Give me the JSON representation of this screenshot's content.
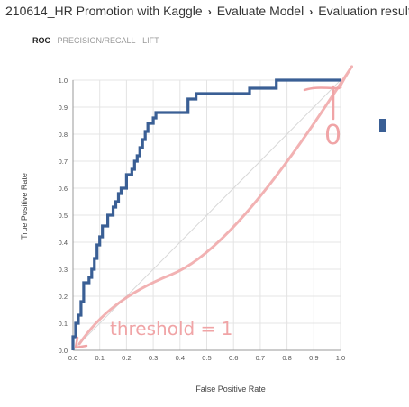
{
  "breadcrumb": {
    "experiment": "210614_HR Promotion with Kaggle",
    "module": "Evaluate Model",
    "page": "Evaluation results",
    "separator": "›"
  },
  "tabs": [
    {
      "label": "ROC",
      "active": true
    },
    {
      "label": "PRECISION/RECALL",
      "active": false
    },
    {
      "label": "LIFT",
      "active": false
    }
  ],
  "annotation": {
    "text": "threshold = 1",
    "sideText": "0",
    "color": "#f0a4a6"
  },
  "colors": {
    "roc": "#3a5f95",
    "diagonal": "#d8d8d8",
    "grid": "#e4e4e4",
    "marker": "#3a5f95"
  },
  "chart_data": {
    "type": "line",
    "xlabel": "False Positive Rate",
    "ylabel": "True Positive Rate",
    "xlim": [
      0,
      1
    ],
    "ylim": [
      0,
      1
    ],
    "xticks": [
      "0.0",
      "0.1",
      "0.2",
      "0.3",
      "0.4",
      "0.5",
      "0.6",
      "0.7",
      "0.8",
      "0.9",
      "1.0"
    ],
    "yticks": [
      "0.0",
      "0.1",
      "0.2",
      "0.3",
      "0.4",
      "0.5",
      "0.6",
      "0.7",
      "0.8",
      "0.9",
      "1.0"
    ],
    "grid": true,
    "series": [
      {
        "x": [
          0,
          0,
          0.01,
          0.01,
          0.02,
          0.02,
          0.03,
          0.03,
          0.04,
          0.04,
          0.06,
          0.06,
          0.07,
          0.07,
          0.08,
          0.08,
          0.09,
          0.09,
          0.1,
          0.1,
          0.11,
          0.11,
          0.13,
          0.13,
          0.15,
          0.15,
          0.16,
          0.16,
          0.17,
          0.17,
          0.18,
          0.18,
          0.2,
          0.2,
          0.22,
          0.22,
          0.23,
          0.23,
          0.24,
          0.24,
          0.25,
          0.25,
          0.26,
          0.26,
          0.27,
          0.27,
          0.28,
          0.28,
          0.3,
          0.3,
          0.31,
          0.31,
          0.32,
          0.32,
          0.43,
          0.43,
          0.46,
          0.46,
          0.6,
          0.6,
          0.66,
          0.66,
          0.74,
          0.74,
          0.76,
          0.76,
          1.0
        ],
        "y": [
          0,
          0.05,
          0.05,
          0.1,
          0.1,
          0.13,
          0.13,
          0.18,
          0.18,
          0.25,
          0.25,
          0.27,
          0.27,
          0.3,
          0.3,
          0.34,
          0.34,
          0.39,
          0.39,
          0.42,
          0.42,
          0.46,
          0.46,
          0.5,
          0.5,
          0.53,
          0.53,
          0.55,
          0.55,
          0.58,
          0.58,
          0.6,
          0.6,
          0.65,
          0.65,
          0.67,
          0.67,
          0.7,
          0.7,
          0.72,
          0.72,
          0.75,
          0.75,
          0.78,
          0.78,
          0.81,
          0.81,
          0.84,
          0.84,
          0.86,
          0.86,
          0.88,
          0.88,
          0.88,
          0.88,
          0.93,
          0.93,
          0.95,
          0.95,
          0.95,
          0.95,
          0.97,
          0.97,
          0.97,
          0.97,
          1.0,
          1.0
        ]
      },
      {
        "x": [
          0,
          1
        ],
        "y": [
          0,
          1
        ]
      }
    ]
  }
}
